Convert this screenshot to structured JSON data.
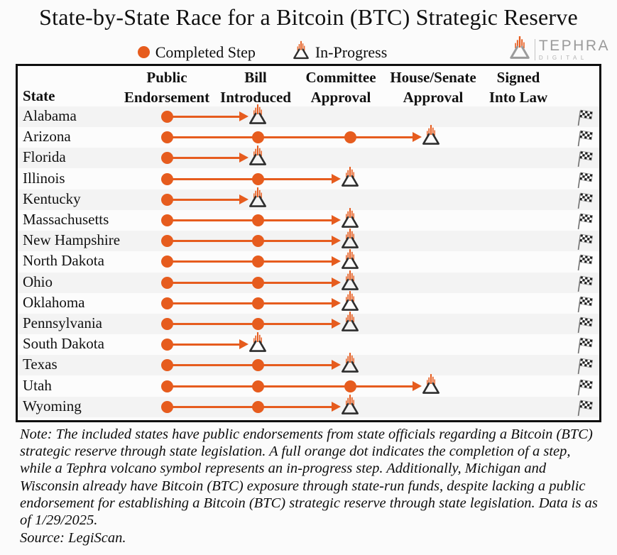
{
  "title": "State-by-State Race for a Bitcoin (BTC) Strategic Reserve",
  "legend": {
    "completed_label": "Completed Step",
    "in_progress_label": "In-Progress"
  },
  "logo": {
    "name": "TEPHRA",
    "sub": "DIGITAL"
  },
  "table": {
    "state_column_header": "State",
    "columns": [
      {
        "line1": "Public",
        "line2": "Endorsement"
      },
      {
        "line1": "Bill",
        "line2": "Introduced"
      },
      {
        "line1": "Committee",
        "line2": "Approval"
      },
      {
        "line1": "House/Senate",
        "line2": "Approval"
      },
      {
        "line1": "Signed",
        "line2": "Into Law"
      }
    ]
  },
  "chart_data": {
    "type": "table",
    "title": "State-by-State Race for a Bitcoin (BTC) Strategic Reserve",
    "legend": [
      {
        "symbol": "orange-dot",
        "label": "Completed Step"
      },
      {
        "symbol": "volcano",
        "label": "In-Progress"
      }
    ],
    "steps": [
      "Public Endorsement",
      "Bill Introduced",
      "Committee Approval",
      "House/Senate Approval",
      "Signed Into Law"
    ],
    "rows": [
      {
        "state": "Alabama",
        "completed": [
          "Public Endorsement"
        ],
        "in_progress": "Bill Introduced"
      },
      {
        "state": "Arizona",
        "completed": [
          "Public Endorsement",
          "Bill Introduced",
          "Committee Approval"
        ],
        "in_progress": "House/Senate Approval"
      },
      {
        "state": "Florida",
        "completed": [
          "Public Endorsement"
        ],
        "in_progress": "Bill Introduced"
      },
      {
        "state": "Illinois",
        "completed": [
          "Public Endorsement",
          "Bill Introduced"
        ],
        "in_progress": "Committee Approval"
      },
      {
        "state": "Kentucky",
        "completed": [
          "Public Endorsement"
        ],
        "in_progress": "Bill Introduced"
      },
      {
        "state": "Massachusetts",
        "completed": [
          "Public Endorsement",
          "Bill Introduced"
        ],
        "in_progress": "Committee Approval"
      },
      {
        "state": "New Hampshire",
        "completed": [
          "Public Endorsement",
          "Bill Introduced"
        ],
        "in_progress": "Committee Approval"
      },
      {
        "state": "North Dakota",
        "completed": [
          "Public Endorsement",
          "Bill Introduced"
        ],
        "in_progress": "Committee Approval"
      },
      {
        "state": "Ohio",
        "completed": [
          "Public Endorsement",
          "Bill Introduced"
        ],
        "in_progress": "Committee Approval"
      },
      {
        "state": "Oklahoma",
        "completed": [
          "Public Endorsement",
          "Bill Introduced"
        ],
        "in_progress": "Committee Approval"
      },
      {
        "state": "Pennsylvania",
        "completed": [
          "Public Endorsement",
          "Bill Introduced"
        ],
        "in_progress": "Committee Approval"
      },
      {
        "state": "South Dakota",
        "completed": [
          "Public Endorsement"
        ],
        "in_progress": "Bill Introduced"
      },
      {
        "state": "Texas",
        "completed": [
          "Public Endorsement",
          "Bill Introduced"
        ],
        "in_progress": "Committee Approval"
      },
      {
        "state": "Utah",
        "completed": [
          "Public Endorsement",
          "Bill Introduced",
          "Committee Approval"
        ],
        "in_progress": "House/Senate Approval"
      },
      {
        "state": "Wyoming",
        "completed": [
          "Public Endorsement",
          "Bill Introduced"
        ],
        "in_progress": "Committee Approval"
      }
    ]
  },
  "note": "Note: The included states have public endorsements from state officials regarding a Bitcoin (BTC) strategic reserve through state legislation. A full orange dot indicates the completion of a step, while a Tephra volcano symbol represents an in-progress step. Additionally, Michigan and Wisconsin already have Bitcoin (BTC) exposure through state-run funds, despite lacking a public endorsement for establishing a Bitcoin (BTC) strategic reserve through state legislation. Data is as of 1/29/2025.",
  "source": "Source: LegiScan.",
  "colors": {
    "accent_orange": "#E65C1E",
    "volcano_dark": "#2E2E2E",
    "logo_gray": "#9B9B9B",
    "border_black": "#0E0E0E"
  }
}
